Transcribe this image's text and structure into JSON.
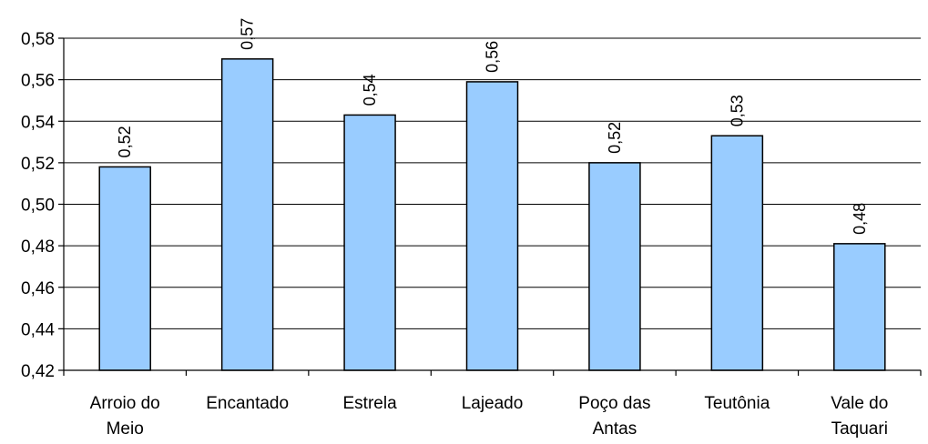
{
  "chart_data": {
    "type": "bar",
    "categories": [
      [
        "Arroio do",
        "Meio"
      ],
      [
        "Encantado"
      ],
      [
        "Estrela"
      ],
      [
        "Lajeado"
      ],
      [
        "Poço das",
        "Antas"
      ],
      [
        "Teutônia"
      ],
      [
        "Vale do",
        "Taquari"
      ]
    ],
    "values": [
      0.518,
      0.57,
      0.543,
      0.559,
      0.52,
      0.533,
      0.481
    ],
    "data_labels": [
      "0,52",
      "0,57",
      "0,54",
      "0,56",
      "0,52",
      "0,53",
      "0,48"
    ],
    "ylim": [
      0.42,
      0.58
    ],
    "yticks": [
      0.42,
      0.44,
      0.46,
      0.48,
      0.5,
      0.52,
      0.54,
      0.56,
      0.58
    ],
    "ytick_labels": [
      "0,42",
      "0,44",
      "0,46",
      "0,48",
      "0,50",
      "0,52",
      "0,54",
      "0,56",
      "0,58"
    ],
    "title": "",
    "xlabel": "",
    "ylabel": "",
    "grid": true,
    "legend": "none",
    "bar_color": "#99CCFF"
  }
}
